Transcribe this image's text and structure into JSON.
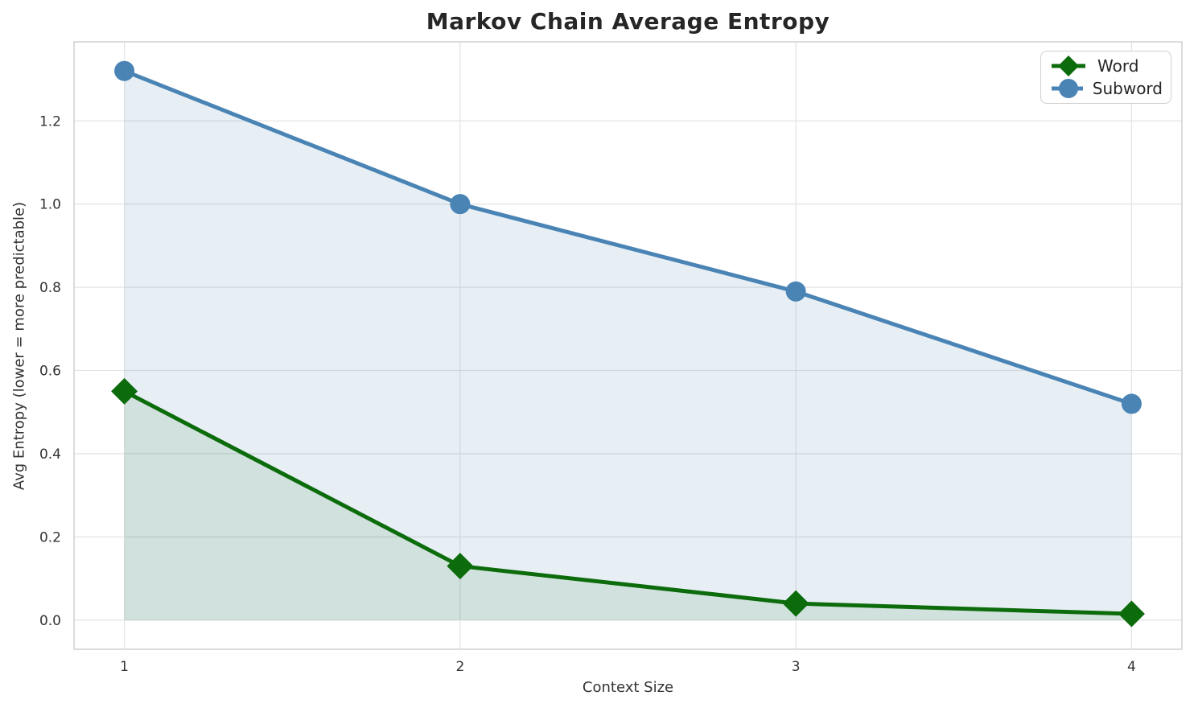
{
  "chart_data": {
    "type": "line",
    "title": "Markov Chain Average Entropy",
    "xlabel": "Context Size",
    "ylabel": "Avg Entropy (lower = more predictable)",
    "x": [
      1,
      2,
      3,
      4
    ],
    "series": [
      {
        "name": "Word",
        "values": [
          0.55,
          0.13,
          0.04,
          0.015
        ],
        "color": "#0c6c0c",
        "marker": "diamond",
        "fill_to_zero": true,
        "fill_color": "rgba(15,110,15,0.10)"
      },
      {
        "name": "Subword",
        "values": [
          1.32,
          1.0,
          0.79,
          0.52
        ],
        "color": "#4a84b5",
        "marker": "circle",
        "fill_to_zero": true,
        "fill_color": "rgba(70,130,180,0.13)"
      }
    ],
    "xticks": [
      1,
      2,
      3,
      4
    ],
    "xtick_labels": [
      "1",
      "2",
      "3",
      "4"
    ],
    "yticks": [
      0.0,
      0.2,
      0.4,
      0.6,
      0.8,
      1.0,
      1.2
    ],
    "ytick_labels": [
      "0.0",
      "0.2",
      "0.4",
      "0.6",
      "0.8",
      "1.0",
      "1.2"
    ],
    "xlim": [
      0.85,
      4.15
    ],
    "ylim": [
      -0.07,
      1.39
    ],
    "grid": true,
    "grid_color": "#e4e4e4",
    "frame_color": "#d4d4d4",
    "legend_position": "upper right"
  },
  "legend": {
    "items": [
      {
        "label": "Word"
      },
      {
        "label": "Subword"
      }
    ]
  }
}
